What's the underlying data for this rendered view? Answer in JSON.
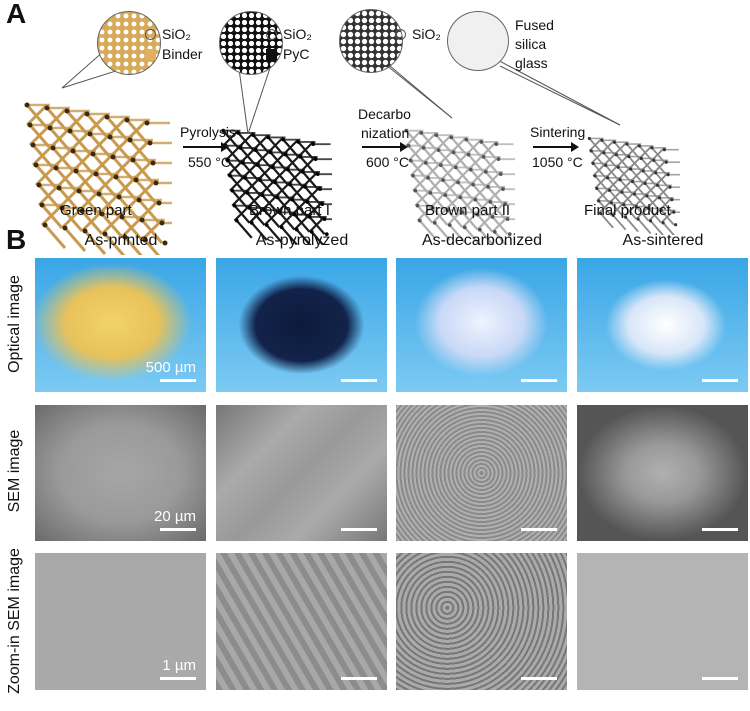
{
  "panel_a": {
    "letter": "A",
    "stages": [
      {
        "label": "Green part",
        "color": "#c99a4e"
      },
      {
        "label": "Brown part I",
        "color": "#1a1a1a"
      },
      {
        "label": "Brown part II",
        "color": "#b0b0b0"
      },
      {
        "label": "Final product",
        "color": "#8a8a8a"
      }
    ],
    "legends": [
      {
        "items": [
          {
            "text": "SiO₂",
            "icon": "circle"
          },
          {
            "text": "Binder",
            "color": "#e0b060"
          }
        ]
      },
      {
        "items": [
          {
            "text": "SiO₂",
            "icon": "circle"
          },
          {
            "text": "PyC",
            "color": "#111111"
          }
        ]
      },
      {
        "items": [
          {
            "text": "SiO₂",
            "icon": "circle"
          }
        ]
      },
      {
        "items": [
          {
            "text": "Fused"
          },
          {
            "text": "silica"
          },
          {
            "text": "glass"
          }
        ]
      }
    ],
    "steps": [
      {
        "top": "Pyrolysis",
        "bottom": "550 °C"
      },
      {
        "top": "Decarbo",
        "top2": "nization",
        "bottom": "600 °C"
      },
      {
        "top": "Sintering",
        "bottom": "1050 °C"
      }
    ]
  },
  "panel_b": {
    "letter": "B",
    "columns": [
      "As-printed",
      "As-pyrolyzed",
      "As-decarbonized",
      "As-sintered"
    ],
    "rows": [
      "Optical image",
      "SEM image",
      "Zoom-in SEM image"
    ],
    "scale_bars": [
      "500 µm",
      "20 µm",
      "1 µm"
    ]
  }
}
